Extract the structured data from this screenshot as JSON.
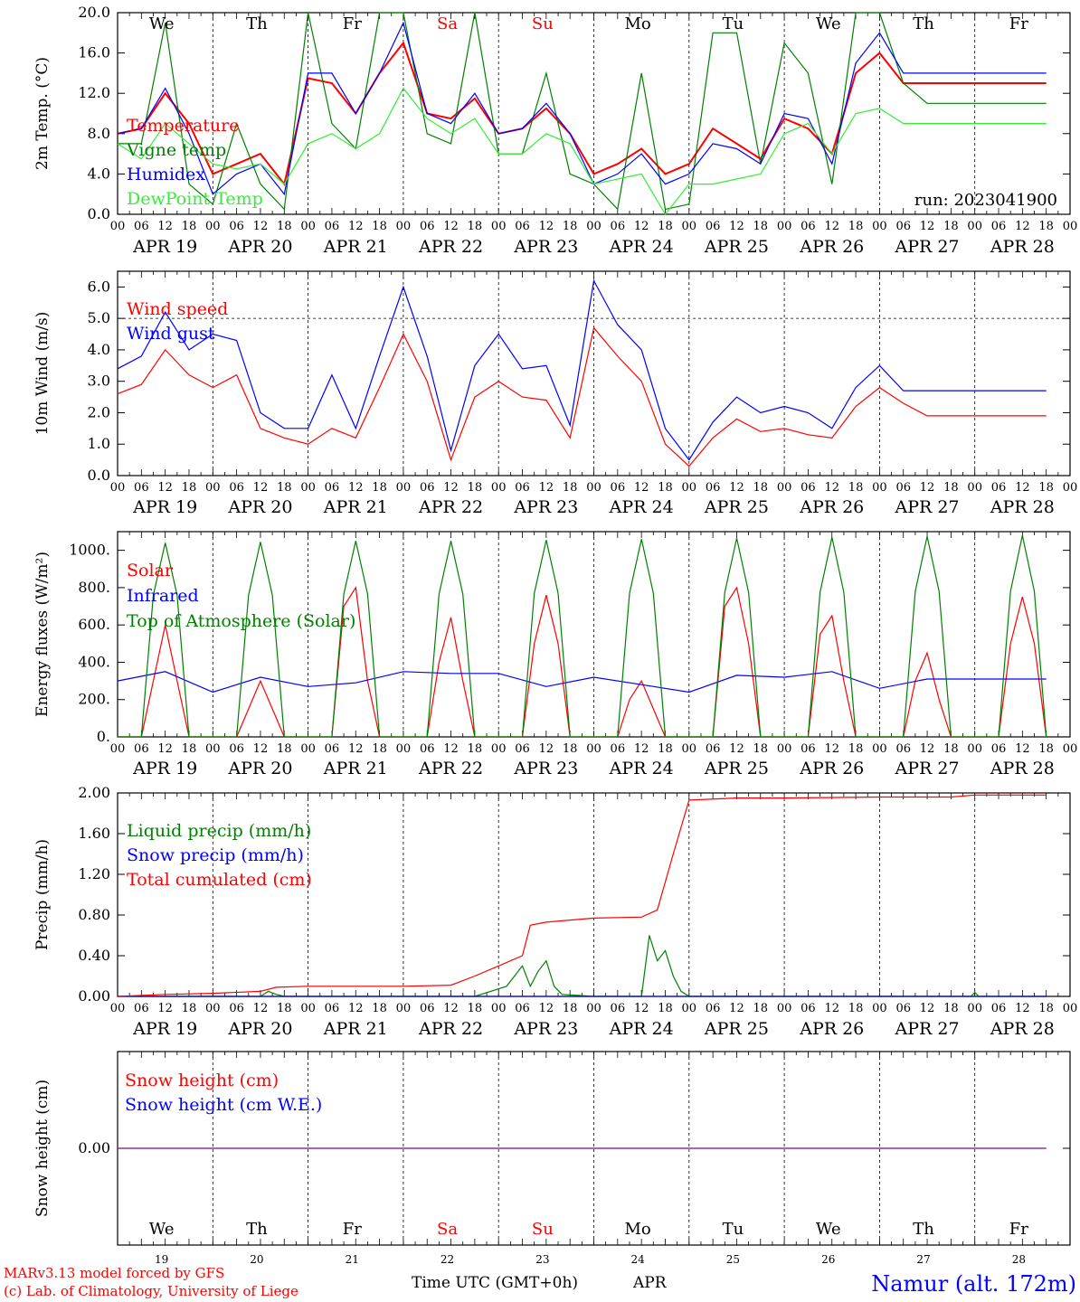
{
  "colors": {
    "red": "#ff0000",
    "green": "#008000",
    "blue": "#0000ff",
    "lightgreen": "#33ee33",
    "purple": "#8030a0"
  },
  "days": [
    "We",
    "Th",
    "Fr",
    "Sa",
    "Su",
    "Mo",
    "Tu",
    "We",
    "Th",
    "Fr"
  ],
  "weekend_days": [
    3,
    4
  ],
  "date_labels": [
    "APR 19",
    "APR 20",
    "APR 21",
    "APR 22",
    "APR 23",
    "APR 24",
    "APR 25",
    "APR 26",
    "APR 27",
    "APR 28"
  ],
  "day_numbers": [
    "19",
    "20",
    "21",
    "22",
    "23",
    "24",
    "25",
    "26",
    "27",
    "28"
  ],
  "hour_labels": [
    "00",
    "06",
    "12",
    "18"
  ],
  "hour_end_label": "00",
  "run_label": "run: 2023041900",
  "footer": {
    "model": "MARv3.13 model forced by GFS",
    "lab": "(c) Lab. of Climatology, University of Liege",
    "xlabel": "Time UTC (GMT+0h)",
    "month": "APR",
    "station": "Namur (alt. 172m)"
  },
  "chart_data": [
    {
      "type": "line",
      "ylabel": "2m Temp. (°C)",
      "ylim": [
        0,
        20
      ],
      "yticks": [
        "0.0",
        "4.0",
        "8.0",
        "12.0",
        "16.0",
        "20.0"
      ],
      "x_unit": "hours since APR 19 00 UTC",
      "series": [
        {
          "name": "Temperature",
          "color": "red",
          "x": [
            0,
            6,
            12,
            18,
            24,
            30,
            36,
            42,
            48,
            54,
            60,
            66,
            72,
            78,
            84,
            90,
            96,
            102,
            108,
            114,
            120,
            126,
            132,
            138,
            144,
            150,
            156,
            162,
            168,
            174,
            180,
            186,
            192,
            198,
            204,
            210,
            216,
            222,
            228,
            234
          ],
          "values": [
            8,
            8.5,
            12,
            9,
            4,
            5,
            6,
            3,
            13.5,
            13,
            10,
            14,
            17,
            10,
            9.5,
            11.5,
            8,
            8.5,
            10.5,
            8,
            4,
            5,
            6.5,
            4,
            5,
            8.5,
            7,
            5.5,
            9.5,
            8.5,
            6,
            14,
            16,
            13,
            13,
            13,
            13,
            13,
            13,
            13
          ]
        },
        {
          "name": "Vigne temp",
          "color": "green",
          "x": [
            0,
            6,
            12,
            18,
            24,
            30,
            36,
            42,
            48,
            54,
            60,
            66,
            72,
            78,
            84,
            90,
            96,
            102,
            108,
            114,
            120,
            126,
            132,
            138,
            144,
            150,
            156,
            162,
            168,
            174,
            180,
            186,
            192,
            198,
            204,
            210,
            216,
            222,
            228,
            234
          ],
          "values": [
            7,
            7,
            19,
            3,
            1,
            9,
            3,
            0.5,
            20,
            9,
            6.5,
            20,
            20,
            8,
            7,
            20,
            6,
            6,
            14,
            4,
            3,
            0.5,
            14,
            0.5,
            1,
            18,
            18,
            5,
            17,
            14,
            3,
            20,
            20,
            13,
            11,
            11,
            11,
            11,
            11,
            11
          ]
        },
        {
          "name": "Humidex",
          "color": "blue",
          "x": [
            0,
            6,
            12,
            18,
            24,
            30,
            36,
            42,
            48,
            54,
            60,
            66,
            72,
            78,
            84,
            90,
            96,
            102,
            108,
            114,
            120,
            126,
            132,
            138,
            144,
            150,
            156,
            162,
            168,
            174,
            180,
            186,
            192,
            198,
            204,
            210,
            216,
            222,
            228,
            234
          ],
          "values": [
            8,
            8.5,
            12.5,
            8,
            2,
            4,
            5,
            2,
            14,
            14,
            10,
            14,
            19,
            10,
            9,
            12,
            8,
            8.5,
            11,
            8,
            3,
            4,
            6,
            3,
            4,
            7,
            6.5,
            5,
            10,
            9.5,
            5,
            15,
            18,
            14,
            14,
            14,
            14,
            14,
            14,
            14
          ]
        },
        {
          "name": "DewPoint Temp",
          "color": "lightgreen",
          "x": [
            0,
            6,
            12,
            18,
            24,
            30,
            36,
            42,
            48,
            54,
            60,
            66,
            72,
            78,
            84,
            90,
            96,
            102,
            108,
            114,
            120,
            126,
            132,
            138,
            144,
            150,
            156,
            162,
            168,
            174,
            180,
            186,
            192,
            198,
            204,
            210,
            216,
            222,
            228,
            234
          ],
          "values": [
            7,
            5.5,
            9,
            7,
            5,
            4.5,
            5,
            3,
            7,
            8,
            6.5,
            8,
            12.5,
            9.5,
            8,
            9.5,
            6,
            6,
            8,
            7,
            3,
            3.5,
            4,
            0,
            3,
            3,
            3.5,
            4,
            8,
            9,
            6,
            10,
            10.5,
            9,
            9,
            9,
            9,
            9,
            9,
            9
          ]
        }
      ]
    },
    {
      "type": "line",
      "ylabel": "10m Wind (m/s)",
      "ylim": [
        0,
        6.5
      ],
      "yticks": [
        "0.0",
        "1.0",
        "2.0",
        "3.0",
        "4.0",
        "5.0",
        "6.0"
      ],
      "hline": 5,
      "series": [
        {
          "name": "Wind speed",
          "color": "red",
          "x": [
            0,
            6,
            12,
            18,
            24,
            30,
            36,
            42,
            48,
            54,
            60,
            66,
            72,
            78,
            84,
            90,
            96,
            102,
            108,
            114,
            120,
            126,
            132,
            138,
            144,
            150,
            156,
            162,
            168,
            174,
            180,
            186,
            192,
            198,
            204,
            210,
            216,
            222,
            228,
            234
          ],
          "values": [
            2.6,
            2.9,
            4,
            3.2,
            2.8,
            3.2,
            1.5,
            1.2,
            1,
            1.5,
            1.2,
            2.8,
            4.5,
            3,
            0.5,
            2.5,
            3,
            2.5,
            2.4,
            1.2,
            4.7,
            3.8,
            3,
            1,
            0.3,
            1.2,
            1.8,
            1.4,
            1.5,
            1.3,
            1.2,
            2.2,
            2.8,
            2.3,
            1.9,
            1.9,
            1.9,
            1.9,
            1.9,
            1.9
          ]
        },
        {
          "name": "Wind gust",
          "color": "blue",
          "x": [
            0,
            6,
            12,
            18,
            24,
            30,
            36,
            42,
            48,
            54,
            60,
            66,
            72,
            78,
            84,
            90,
            96,
            102,
            108,
            114,
            120,
            126,
            132,
            138,
            144,
            150,
            156,
            162,
            168,
            174,
            180,
            186,
            192,
            198,
            204,
            210,
            216,
            222,
            228,
            234
          ],
          "values": [
            3.4,
            3.8,
            5.2,
            4,
            4.5,
            4.3,
            2,
            1.5,
            1.5,
            3.2,
            1.5,
            3.8,
            6,
            3.8,
            0.8,
            3.5,
            4.5,
            3.4,
            3.5,
            1.6,
            6.2,
            4.8,
            4,
            1.5,
            0.5,
            1.7,
            2.5,
            2,
            2.2,
            2,
            1.5,
            2.8,
            3.5,
            2.7,
            2.7,
            2.7,
            2.7,
            2.7,
            2.7,
            2.7
          ]
        }
      ]
    },
    {
      "type": "line",
      "ylabel": "Energy fluxes (W/m²)",
      "ylim": [
        0,
        1100
      ],
      "yticks": [
        "0.",
        "200.",
        "400.",
        "600.",
        "800.",
        "1000."
      ],
      "series": [
        {
          "name": "Solar",
          "color": "red",
          "x": [
            0,
            6,
            9,
            12,
            15,
            18,
            24,
            30,
            33,
            36,
            39,
            42,
            48,
            54,
            57,
            60,
            63,
            66,
            72,
            78,
            81,
            84,
            87,
            90,
            96,
            102,
            105,
            108,
            111,
            114,
            120,
            126,
            129,
            132,
            135,
            138,
            144,
            150,
            153,
            156,
            159,
            162,
            168,
            174,
            177,
            180,
            183,
            186,
            192,
            198,
            201,
            204,
            207,
            210,
            216,
            222,
            225,
            228,
            231,
            234
          ],
          "values": [
            0,
            0,
            300,
            600,
            300,
            0,
            0,
            0,
            150,
            300,
            150,
            0,
            0,
            0,
            700,
            800,
            300,
            0,
            0,
            0,
            400,
            640,
            300,
            0,
            0,
            0,
            500,
            760,
            500,
            0,
            0,
            0,
            200,
            300,
            150,
            0,
            0,
            0,
            700,
            800,
            500,
            0,
            0,
            0,
            550,
            650,
            300,
            0,
            0,
            0,
            300,
            450,
            200,
            0,
            0,
            0,
            500,
            750,
            500,
            0
          ]
        },
        {
          "name": "Infrared",
          "color": "blue",
          "x": [
            0,
            12,
            24,
            36,
            48,
            60,
            72,
            84,
            96,
            108,
            120,
            132,
            144,
            156,
            168,
            180,
            192,
            204,
            216,
            228,
            234
          ],
          "values": [
            300,
            350,
            240,
            320,
            270,
            290,
            350,
            340,
            340,
            270,
            320,
            280,
            240,
            330,
            320,
            350,
            260,
            310,
            310,
            310,
            310
          ]
        },
        {
          "name": "Top of Atmosphere (Solar)",
          "color": "green",
          "x": [
            0,
            6,
            9,
            12,
            15,
            18,
            24,
            30,
            33,
            36,
            39,
            42,
            48,
            54,
            57,
            60,
            63,
            66,
            72,
            78,
            81,
            84,
            87,
            90,
            96,
            102,
            105,
            108,
            111,
            114,
            120,
            126,
            129,
            132,
            135,
            138,
            144,
            150,
            153,
            156,
            159,
            162,
            168,
            174,
            177,
            180,
            183,
            186,
            192,
            198,
            201,
            204,
            207,
            210,
            216,
            222,
            225,
            228,
            231,
            234
          ],
          "values": [
            0,
            0,
            760,
            1040,
            760,
            0,
            0,
            0,
            760,
            1045,
            760,
            0,
            0,
            0,
            765,
            1050,
            765,
            0,
            0,
            0,
            765,
            1050,
            765,
            0,
            0,
            0,
            770,
            1055,
            770,
            0,
            0,
            0,
            770,
            1060,
            770,
            0,
            0,
            0,
            775,
            1065,
            775,
            0,
            0,
            0,
            775,
            1070,
            775,
            0,
            0,
            0,
            780,
            1075,
            780,
            0,
            0,
            0,
            780,
            1080,
            780,
            0
          ]
        }
      ]
    },
    {
      "type": "line",
      "ylabel": "Precip (mm/h)",
      "ylim": [
        0,
        2
      ],
      "yticks": [
        "0.00",
        "0.40",
        "0.80",
        "1.20",
        "1.60",
        "2.00"
      ],
      "series": [
        {
          "name": "Liquid precip (mm/h)",
          "color": "green",
          "x": [
            0,
            36,
            38,
            40,
            42,
            90,
            94,
            98,
            102,
            104,
            106,
            108,
            110,
            112,
            120,
            132,
            134,
            136,
            138,
            140,
            142,
            144,
            150,
            215,
            216,
            217,
            234
          ],
          "values": [
            0,
            0,
            0.05,
            0.02,
            0,
            0,
            0.05,
            0.1,
            0.3,
            0.1,
            0.25,
            0.35,
            0.1,
            0.02,
            0,
            0,
            0.6,
            0.35,
            0.45,
            0.2,
            0.05,
            0,
            0,
            0,
            0.04,
            0,
            0
          ]
        },
        {
          "name": "Snow precip (mm/h)",
          "color": "blue",
          "x": [
            0,
            234
          ],
          "values": [
            0,
            0
          ]
        },
        {
          "name": "Total cumulated (cm)",
          "color": "red",
          "x": [
            0,
            12,
            24,
            36,
            40,
            48,
            60,
            72,
            84,
            90,
            96,
            102,
            104,
            108,
            120,
            132,
            136,
            140,
            144,
            156,
            168,
            192,
            210,
            216,
            234
          ],
          "values": [
            0,
            0.02,
            0.03,
            0.05,
            0.09,
            0.1,
            0.1,
            0.1,
            0.11,
            0.2,
            0.3,
            0.4,
            0.7,
            0.73,
            0.77,
            0.78,
            0.85,
            1.4,
            1.93,
            1.95,
            1.95,
            1.96,
            1.96,
            1.98,
            1.98
          ]
        }
      ]
    },
    {
      "type": "line",
      "ylabel": "Snow height (cm)",
      "ylim": [
        -1,
        1
      ],
      "yticks": [
        "0.00"
      ],
      "series": [
        {
          "name": "Snow height (cm)",
          "color": "red",
          "x": [
            0,
            234
          ],
          "values": [
            0,
            0
          ]
        },
        {
          "name": "Snow height (cm W.E.)",
          "color": "blue",
          "x": [
            0,
            234
          ],
          "values": [
            0,
            0
          ]
        }
      ]
    }
  ]
}
